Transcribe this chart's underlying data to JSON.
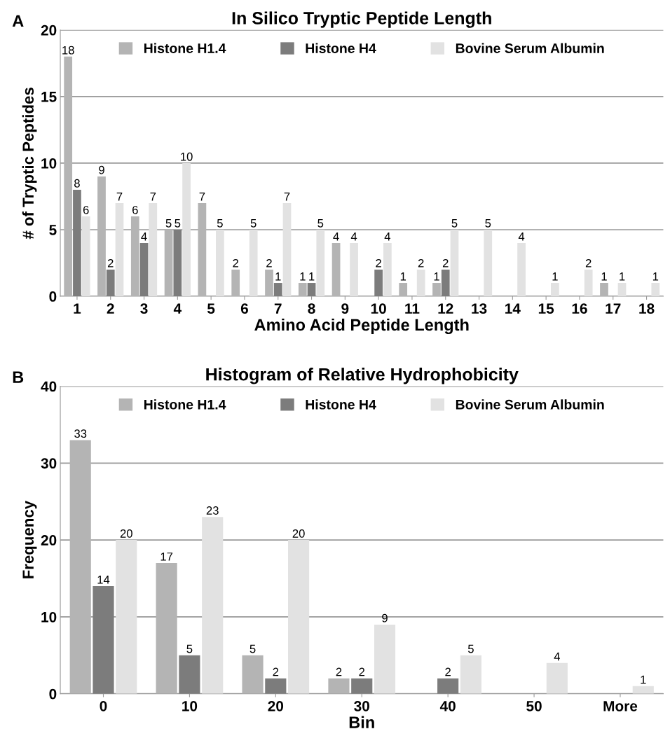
{
  "chart_data": [
    {
      "type": "bar",
      "title": "In Silico Tryptic Peptide Length",
      "xlabel": "Amino Acid Peptide Length",
      "ylabel": "# of Tryptic Peptides",
      "annotations": [
        "A"
      ],
      "categories": [
        "1",
        "2",
        "3",
        "4",
        "5",
        "6",
        "7",
        "8",
        "9",
        "10",
        "11",
        "12",
        "13",
        "14",
        "15",
        "16",
        "17",
        "18"
      ],
      "series": [
        {
          "name": "Histone H1.4",
          "color": "#b4b4b4",
          "values": [
            18,
            9,
            6,
            5,
            7,
            2,
            2,
            1,
            4,
            null,
            1,
            1,
            null,
            null,
            null,
            null,
            1,
            null
          ]
        },
        {
          "name": "Histone H4",
          "color": "#7c7c7c",
          "values": [
            8,
            2,
            4,
            5,
            null,
            null,
            1,
            1,
            null,
            2,
            null,
            2,
            null,
            null,
            null,
            null,
            null,
            null
          ]
        },
        {
          "name": "Bovine Serum Albumin",
          "color": "#e2e2e2",
          "values": [
            6,
            7,
            7,
            10,
            5,
            5,
            7,
            5,
            4,
            4,
            2,
            5,
            5,
            4,
            1,
            2,
            1,
            1
          ]
        }
      ],
      "ylim": [
        0,
        20
      ],
      "yticks": [
        0,
        5,
        10,
        15,
        20
      ],
      "grid": "y",
      "legend": "top",
      "data_labels": true
    },
    {
      "type": "bar",
      "title": "Histogram of Relative Hydrophobicity",
      "xlabel": "Bin",
      "ylabel": "Frequency",
      "annotations": [
        "B"
      ],
      "categories": [
        "0",
        "10",
        "20",
        "30",
        "40",
        "50",
        "More"
      ],
      "series": [
        {
          "name": "Histone H1.4",
          "color": "#b4b4b4",
          "values": [
            33,
            17,
            5,
            2,
            null,
            null,
            null
          ]
        },
        {
          "name": "Histone H4",
          "color": "#7c7c7c",
          "values": [
            14,
            5,
            2,
            2,
            2,
            null,
            null
          ]
        },
        {
          "name": "Bovine Serum Albumin",
          "color": "#e2e2e2",
          "values": [
            20,
            23,
            20,
            9,
            5,
            4,
            1
          ]
        }
      ],
      "ylim": [
        0,
        40
      ],
      "yticks": [
        0,
        10,
        20,
        30,
        40
      ],
      "grid": "y",
      "legend": "top",
      "data_labels": true
    }
  ]
}
